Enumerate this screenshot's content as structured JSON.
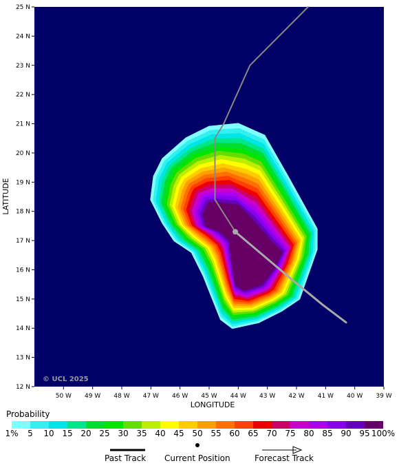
{
  "map": {
    "watermark": "© UCL 2025",
    "xlabel": "LONGITUDE",
    "ylabel": "LATITUDE",
    "lon_ticks": [
      "50 W",
      "49 W",
      "48 W",
      "47 W",
      "46 W",
      "45 W",
      "44 W",
      "43 W",
      "42 W",
      "41 W",
      "40 W",
      "39 W"
    ],
    "lat_ticks": [
      "25 N",
      "24 N",
      "23 N",
      "22 N",
      "21 N",
      "20 N",
      "19 N",
      "18 N",
      "17 N",
      "16 N",
      "15 N",
      "14 N",
      "13 N",
      "12 N"
    ],
    "ocean_color": "#000066",
    "track_color": "#888888",
    "forecast_track_color": "#aaaaaa",
    "current_position": {
      "lon": -44.1,
      "lat": 17.3
    },
    "past_track": [
      [
        -41.6,
        25.0
      ],
      [
        -43.6,
        23.0
      ],
      [
        -44.5,
        21.0
      ],
      [
        -44.8,
        20.5
      ],
      [
        -44.8,
        18.4
      ],
      [
        -44.1,
        17.3
      ]
    ],
    "forecast_track": [
      [
        -44.1,
        17.3
      ],
      [
        -42.2,
        15.7
      ],
      [
        -41.1,
        14.8
      ],
      [
        -40.3,
        14.2
      ]
    ]
  },
  "legend": {
    "title": "Probability",
    "labels": [
      "1%",
      "5",
      "10",
      "15",
      "20",
      "25",
      "30",
      "35",
      "40",
      "45",
      "50",
      "55",
      "60",
      "65",
      "70",
      "75",
      "80",
      "85",
      "90",
      "95",
      "100%"
    ],
    "colors": [
      "#80ffff",
      "#33f0f0",
      "#00e6e6",
      "#00e68a",
      "#00dd33",
      "#00e600",
      "#66dd00",
      "#bbee00",
      "#ffff00",
      "#ffcc00",
      "#ffa000",
      "#ff7000",
      "#ff4000",
      "#ee0000",
      "#cc0066",
      "#cc00cc",
      "#aa00ee",
      "#8800ee",
      "#6600bb",
      "#660066"
    ],
    "past_track_label": "Past Track",
    "current_position_label": "Current Position",
    "forecast_track_label": "Forecast Track"
  }
}
